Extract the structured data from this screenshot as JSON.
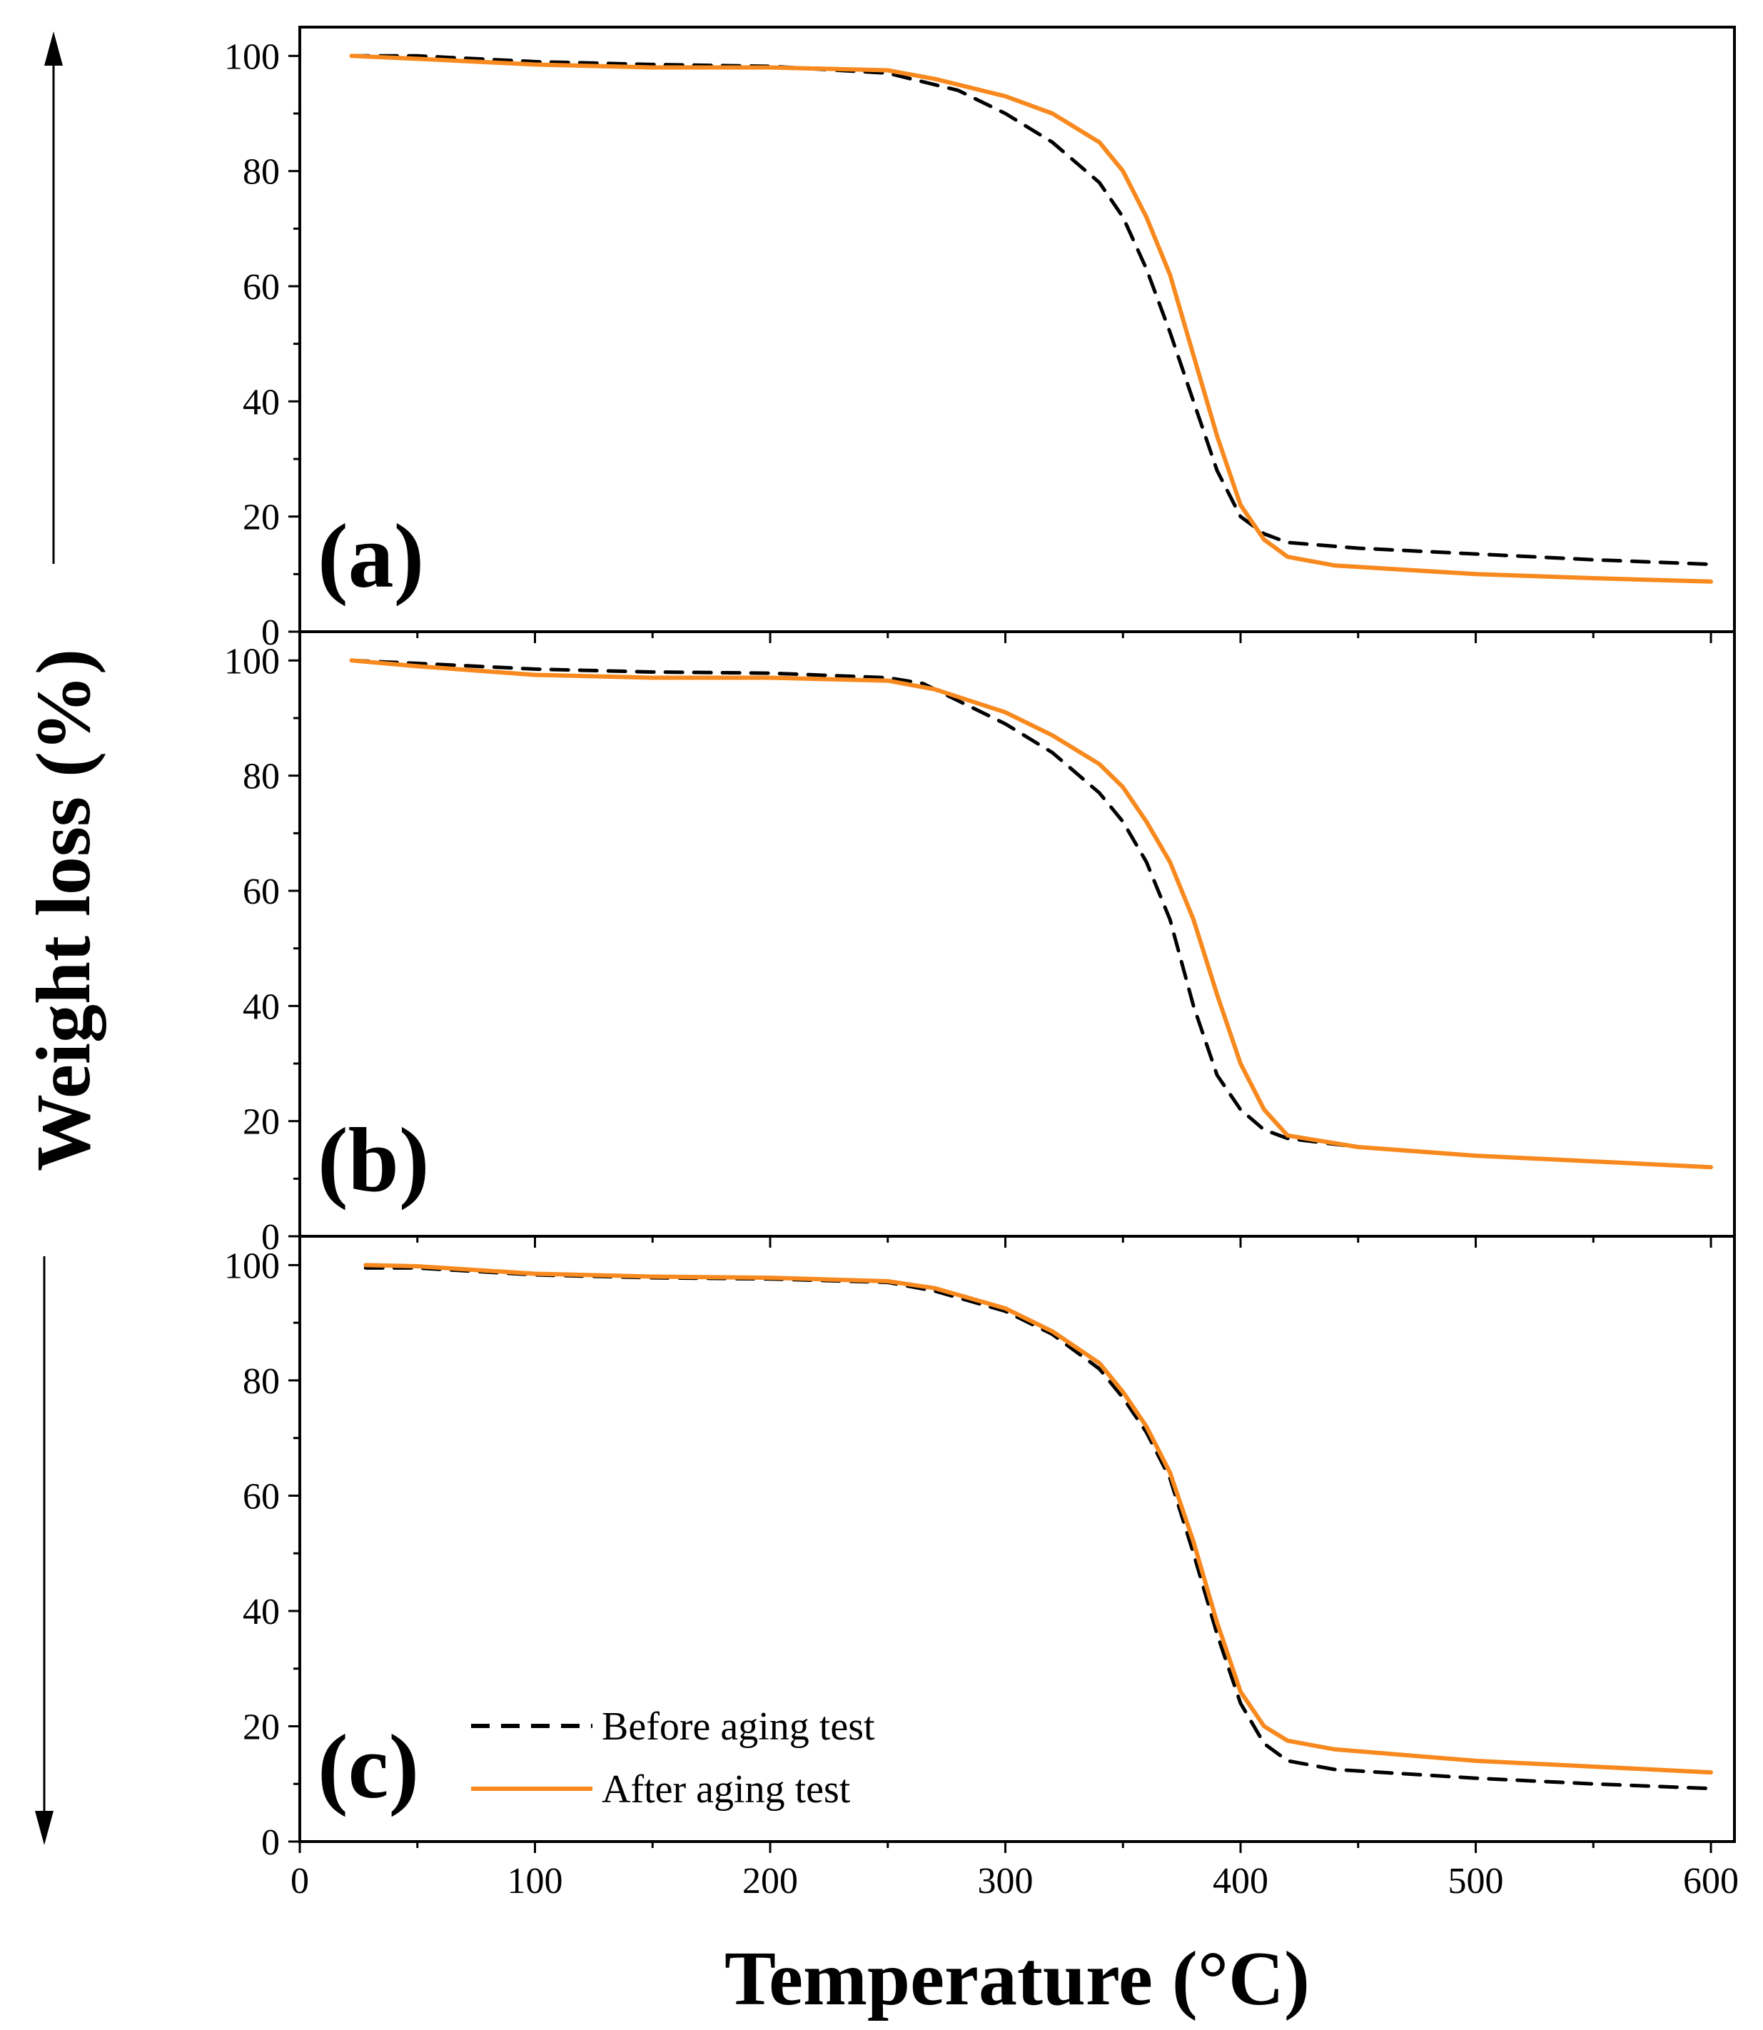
{
  "figure": {
    "ylabel": "Weight loss (%)",
    "xlabel": "Temperature (°C)"
  },
  "legend": {
    "items": [
      {
        "label": "Before aging test",
        "style": "dashed",
        "color": "#000000"
      },
      {
        "label": "After aging test",
        "style": "solid",
        "color": "#F7891E"
      }
    ]
  },
  "chart_data": [
    {
      "type": "line",
      "panel_label": "(a)",
      "xlim": [
        0,
        610
      ],
      "ylim": [
        0,
        105
      ],
      "xticks": [
        0,
        100,
        200,
        300,
        400,
        500,
        600
      ],
      "yticks": [
        0,
        20,
        40,
        60,
        80,
        100
      ],
      "xtick_labels": [
        "0",
        "100",
        "200",
        "300",
        "400",
        "500",
        "600"
      ],
      "ytick_labels": [
        "0",
        "20",
        "40",
        "60",
        "80",
        "100"
      ],
      "series": [
        {
          "name": "Before aging test",
          "x": [
            22,
            50,
            100,
            150,
            200,
            250,
            260,
            280,
            300,
            320,
            340,
            350,
            360,
            370,
            380,
            390,
            400,
            410,
            420,
            450,
            500,
            550,
            600
          ],
          "y": [
            100,
            100,
            99,
            98.5,
            98.2,
            97,
            96,
            94,
            90,
            85,
            78,
            72,
            63,
            52,
            40,
            28,
            20,
            17,
            15.5,
            14.5,
            13.5,
            12.5,
            11.7
          ]
        },
        {
          "name": "After aging test",
          "x": [
            22,
            50,
            100,
            150,
            200,
            250,
            270,
            300,
            320,
            340,
            350,
            360,
            370,
            380,
            390,
            400,
            410,
            420,
            440,
            500,
            550,
            600
          ],
          "y": [
            100,
            99.5,
            98.5,
            98,
            98,
            97.5,
            96,
            93,
            90,
            85,
            80,
            72,
            62,
            48,
            34,
            22,
            16,
            13,
            11.5,
            10,
            9.3,
            8.7
          ]
        }
      ]
    },
    {
      "type": "line",
      "panel_label": "(b)",
      "xlim": [
        0,
        610
      ],
      "ylim": [
        0,
        105
      ],
      "xticks": [
        0,
        100,
        200,
        300,
        400,
        500,
        600
      ],
      "yticks": [
        0,
        20,
        40,
        60,
        80,
        100
      ],
      "xtick_labels": [
        "0",
        "100",
        "200",
        "300",
        "400",
        "500",
        "600"
      ],
      "ytick_labels": [
        "0",
        "20",
        "40",
        "60",
        "80",
        "100"
      ],
      "series": [
        {
          "name": "Before aging test",
          "x": [
            22,
            50,
            100,
            150,
            200,
            250,
            265,
            280,
            300,
            320,
            340,
            350,
            360,
            370,
            380,
            390,
            400,
            410,
            420,
            450,
            500,
            550,
            600
          ],
          "y": [
            100,
            99.5,
            98.5,
            98,
            97.8,
            97,
            96,
            93,
            89,
            84,
            77,
            72,
            65,
            55,
            40,
            28,
            22,
            18.5,
            17,
            15.5,
            14,
            13,
            12
          ]
        },
        {
          "name": "After aging test",
          "x": [
            22,
            50,
            100,
            150,
            200,
            250,
            270,
            300,
            320,
            340,
            350,
            360,
            370,
            380,
            390,
            400,
            410,
            420,
            450,
            500,
            550,
            600
          ],
          "y": [
            100,
            99,
            97.5,
            97,
            97,
            96.5,
            95,
            91,
            87,
            82,
            78,
            72,
            65,
            55,
            42,
            30,
            22,
            17.5,
            15.5,
            14,
            13,
            12
          ]
        }
      ]
    },
    {
      "type": "line",
      "panel_label": "(c)",
      "xlim": [
        0,
        610
      ],
      "ylim": [
        0,
        105
      ],
      "xticks": [
        0,
        100,
        200,
        300,
        400,
        500,
        600
      ],
      "yticks": [
        0,
        20,
        40,
        60,
        80,
        100
      ],
      "xtick_labels": [
        "0",
        "100",
        "200",
        "300",
        "400",
        "500",
        "600"
      ],
      "ytick_labels": [
        "0",
        "20",
        "40",
        "60",
        "80",
        "100"
      ],
      "series": [
        {
          "name": "Before aging test",
          "x": [
            28,
            50,
            100,
            150,
            200,
            250,
            270,
            300,
            320,
            340,
            350,
            360,
            370,
            380,
            390,
            400,
            410,
            420,
            440,
            500,
            550,
            600
          ],
          "y": [
            99.5,
            99.5,
            98.3,
            97.8,
            97.6,
            97,
            95.5,
            92,
            88,
            82,
            77,
            71,
            63,
            50,
            36,
            24,
            17,
            14,
            12.5,
            11,
            10,
            9.2
          ]
        },
        {
          "name": "After aging test",
          "x": [
            28,
            50,
            100,
            150,
            200,
            250,
            270,
            300,
            320,
            340,
            350,
            360,
            370,
            380,
            390,
            400,
            410,
            420,
            440,
            500,
            550,
            600
          ],
          "y": [
            100,
            99.8,
            98.5,
            98,
            97.8,
            97.2,
            96,
            92.5,
            88.5,
            83,
            78,
            72,
            64,
            52,
            38,
            26,
            20,
            17.5,
            16,
            14,
            13,
            12
          ]
        }
      ]
    }
  ]
}
